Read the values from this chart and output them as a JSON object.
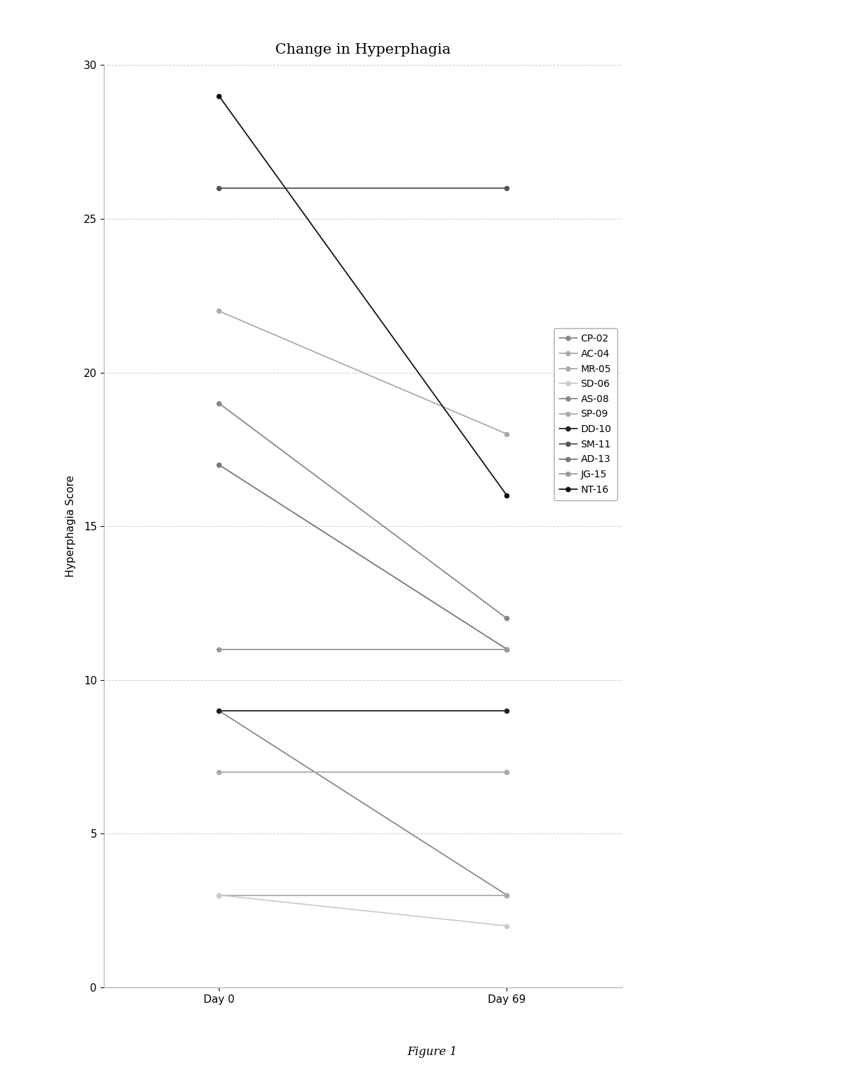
{
  "title": "Change in Hyperphagia",
  "xlabel_day0": "Day 0",
  "xlabel_day69": "Day 69",
  "ylabel": "Hyperphagia Score",
  "figure_label": "Figure 1",
  "ylim": [
    0,
    30
  ],
  "yticks": [
    0,
    5,
    10,
    15,
    20,
    25,
    30
  ],
  "series": [
    {
      "label": "CP-02",
      "day0": 9,
      "day69": 3,
      "color": "#888888"
    },
    {
      "label": "AC-04",
      "day0": 3,
      "day69": 3,
      "color": "#aaaaaa"
    },
    {
      "label": "MR-05",
      "day0": 22,
      "day69": 18,
      "color": "#aaaaaa"
    },
    {
      "label": "SD-06",
      "day0": 3,
      "day69": 2,
      "color": "#cccccc"
    },
    {
      "label": "AS-08",
      "day0": 19,
      "day69": 12,
      "color": "#888888"
    },
    {
      "label": "SP-09",
      "day0": 7,
      "day69": 7,
      "color": "#aaaaaa"
    },
    {
      "label": "DD-10",
      "day0": 9,
      "day69": 9,
      "color": "#222222"
    },
    {
      "label": "SM-11",
      "day0": 26,
      "day69": 26,
      "color": "#555555"
    },
    {
      "label": "AD-13",
      "day0": 17,
      "day69": 11,
      "color": "#777777"
    },
    {
      "label": "JG-15",
      "day0": 11,
      "day69": 11,
      "color": "#999999"
    },
    {
      "label": "NT-16",
      "day0": 29,
      "day69": 16,
      "color": "#111111"
    }
  ],
  "line_colors": [
    "#888888",
    "#aaaaaa",
    "#aaaaaa",
    "#cccccc",
    "#888888",
    "#aaaaaa",
    "#222222",
    "#555555",
    "#777777",
    "#999999",
    "#111111"
  ],
  "background_color": "#ffffff",
  "grid_color": "#c8c8c8",
  "title_fontsize": 15,
  "axis_label_fontsize": 11,
  "tick_fontsize": 11,
  "legend_fontsize": 10,
  "fig_width": 12.4,
  "fig_height": 15.57
}
